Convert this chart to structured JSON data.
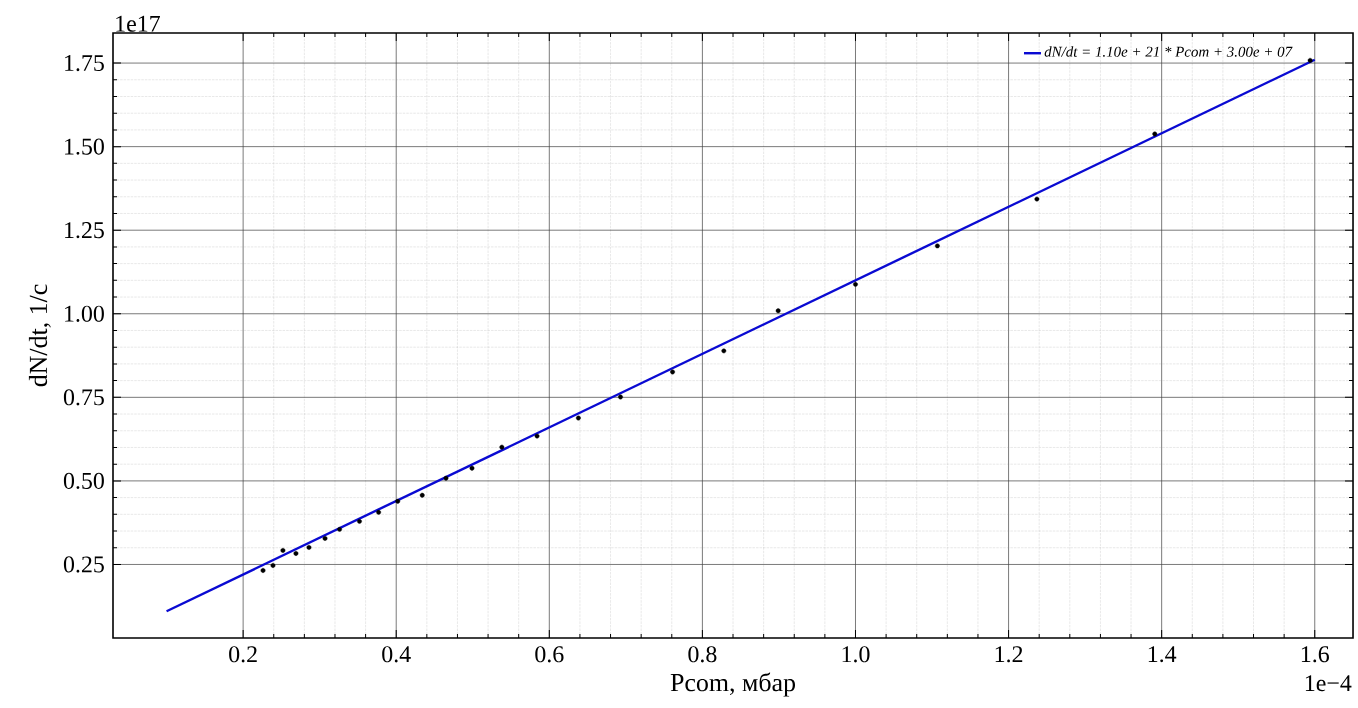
{
  "chart_data": {
    "type": "scatter",
    "xlabel": "Pcom, мбар",
    "ylabel": "dN/dt, 1/c",
    "xlim": [
      0.03,
      1.65
    ],
    "ylim": [
      0.03,
      1.84
    ],
    "xticks": [
      {
        "value": 0.2,
        "label": "0.2"
      },
      {
        "value": 0.4,
        "label": "0.4"
      },
      {
        "value": 0.6,
        "label": "0.6"
      },
      {
        "value": 0.8,
        "label": "0.8"
      },
      {
        "value": 1.0,
        "label": "1.0"
      },
      {
        "value": 1.2,
        "label": "1.2"
      },
      {
        "value": 1.4,
        "label": "1.4"
      },
      {
        "value": 1.6,
        "label": "1.6"
      }
    ],
    "yticks": [
      {
        "value": 0.25,
        "label": "0.25"
      },
      {
        "value": 0.5,
        "label": "0.50"
      },
      {
        "value": 0.75,
        "label": "0.75"
      },
      {
        "value": 1.0,
        "label": "1.00"
      },
      {
        "value": 1.25,
        "label": "1.25"
      },
      {
        "value": 1.5,
        "label": "1.50"
      },
      {
        "value": 1.75,
        "label": "1.75"
      }
    ],
    "grid": true,
    "legend": "top right",
    "marker": "circle",
    "annotations": [
      "1e17",
      "1e−4"
    ],
    "series": [
      {
        "color": "#000000",
        "x": [
          0.226,
          0.239,
          0.252,
          0.269,
          0.286,
          0.307,
          0.326,
          0.352,
          0.377,
          0.402,
          0.434,
          0.465,
          0.499,
          0.538,
          0.584,
          0.638,
          0.693,
          0.761,
          0.828,
          0.899,
          1.0,
          1.107,
          1.237,
          1.391,
          1.594
        ],
        "values": [
          0.232,
          0.247,
          0.292,
          0.283,
          0.301,
          0.328,
          0.355,
          0.379,
          0.406,
          0.439,
          0.457,
          0.508,
          0.538,
          0.601,
          0.634,
          0.688,
          0.751,
          0.826,
          0.889,
          1.009,
          1.088,
          1.203,
          1.343,
          1.538,
          1.758
        ]
      },
      {
        "type": "line",
        "name": "dN/dt = 1.10e + 21 * Pcom + 3.00e + 07",
        "color": "#0a0ad2",
        "marker": "none",
        "x": [
          0.1,
          1.6
        ],
        "values": [
          0.11,
          1.76
        ]
      }
    ]
  }
}
